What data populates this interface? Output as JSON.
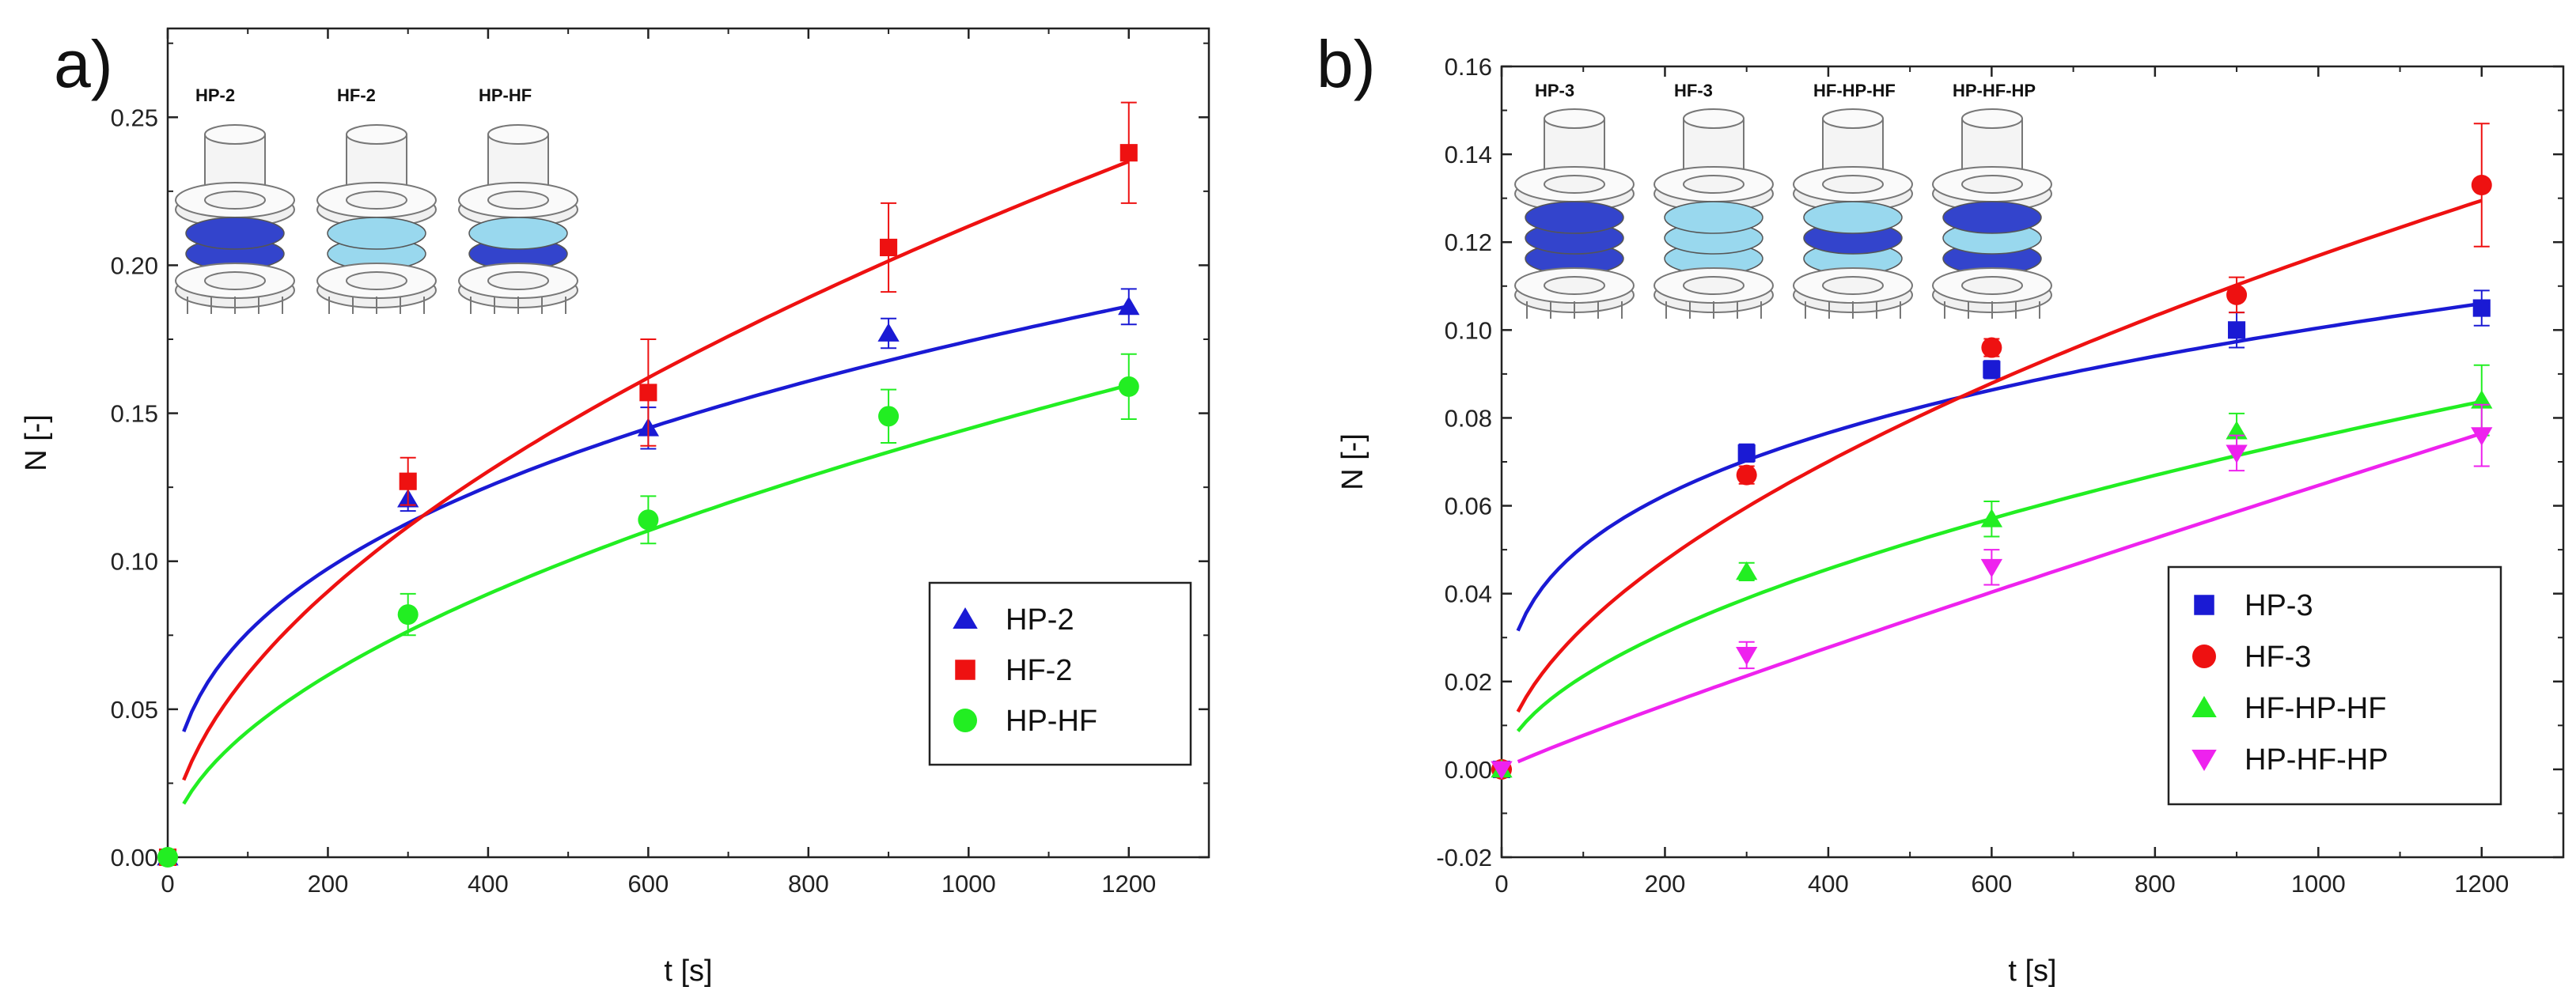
{
  "colors": {
    "blue": "#1a1ad4",
    "red": "#ee1111",
    "green": "#22ee22",
    "magenta": "#ee22ee",
    "pad_dark": "#3344cc",
    "pad_light": "#99d8ee"
  },
  "chart_data": [
    {
      "type": "scatter",
      "panel_label": "a)",
      "title": "",
      "xlabel": "t [s]",
      "ylabel": "N [-]",
      "xlim": [
        0,
        1300
      ],
      "ylim": [
        0,
        0.28
      ],
      "xticks": [
        0,
        200,
        400,
        600,
        800,
        1000,
        1200
      ],
      "xtick_labels": [
        "0",
        "200",
        "400",
        "600",
        "800",
        "1000",
        "1200"
      ],
      "yticks": [
        0,
        0.05,
        0.1,
        0.15,
        0.2,
        0.25
      ],
      "ytick_labels": [
        "0.00",
        "0.05",
        "0.10",
        "0.15",
        "0.20",
        "0.25"
      ],
      "legend_position": "center-right",
      "inset_labels": [
        "HP-2",
        "HF-2",
        "HP-HF"
      ],
      "series": [
        {
          "name": "HP-2",
          "color": "#1a1ad4",
          "marker": "triangle-up",
          "x": [
            0,
            300,
            600,
            900,
            1200
          ],
          "y": [
            0,
            0.121,
            0.145,
            0.177,
            0.186
          ],
          "err": [
            0,
            0.004,
            0.007,
            0.005,
            0.006
          ],
          "fit_a": 0.0144,
          "fit_b": 0.361
        },
        {
          "name": "HF-2",
          "color": "#ee1111",
          "marker": "square",
          "x": [
            0,
            300,
            600,
            900,
            1200
          ],
          "y": [
            0,
            0.127,
            0.157,
            0.206,
            0.238
          ],
          "err": [
            0,
            0.008,
            0.018,
            0.015,
            0.017
          ],
          "fit_a": 0.00522,
          "fit_b": 0.537
        },
        {
          "name": "HP-HF",
          "color": "#22ee22",
          "marker": "circle",
          "x": [
            0,
            300,
            600,
            900,
            1200
          ],
          "y": [
            0,
            0.082,
            0.114,
            0.149,
            0.159
          ],
          "err": [
            0,
            0.007,
            0.008,
            0.009,
            0.011
          ],
          "fit_a": 0.00367,
          "fit_b": 0.532
        }
      ]
    },
    {
      "type": "scatter",
      "panel_label": "b)",
      "title": "",
      "xlabel": "t [s]",
      "ylabel": "N [-]",
      "xlim": [
        0,
        1300
      ],
      "ylim": [
        -0.02,
        0.16
      ],
      "xticks": [
        0,
        200,
        400,
        600,
        800,
        1000,
        1200
      ],
      "xtick_labels": [
        "0",
        "200",
        "400",
        "600",
        "800",
        "1000",
        "1200"
      ],
      "yticks": [
        -0.02,
        0,
        0.02,
        0.04,
        0.06,
        0.08,
        0.1,
        0.12,
        0.14,
        0.16
      ],
      "ytick_labels": [
        "-0.02",
        "0.00",
        "0.02",
        "0.04",
        "0.06",
        "0.08",
        "0.10",
        "0.12",
        "0.14",
        "0.16"
      ],
      "legend_position": "bottom-right",
      "inset_labels": [
        "HP-3",
        "HF-3",
        "HF-HP-HF",
        "HP-HF-HP"
      ],
      "series": [
        {
          "name": "HP-3",
          "color": "#1a1ad4",
          "marker": "square",
          "x": [
            0,
            300,
            600,
            900,
            1200
          ],
          "y": [
            0,
            0.072,
            0.091,
            0.1,
            0.105
          ],
          "err": [
            0,
            0.002,
            0.002,
            0.004,
            0.004
          ],
          "fit_a": 0.013,
          "fit_b": 0.296
        },
        {
          "name": "HF-3",
          "color": "#ee1111",
          "marker": "circle",
          "x": [
            0,
            300,
            600,
            900,
            1200
          ],
          "y": [
            0,
            0.067,
            0.096,
            0.108,
            0.133
          ],
          "err": [
            0,
            0.002,
            0.002,
            0.004,
            0.014
          ],
          "fit_a": 0.00246,
          "fit_b": 0.559
        },
        {
          "name": "HF-HP-HF",
          "color": "#22ee22",
          "marker": "triangle-up",
          "x": [
            0,
            300,
            600,
            900,
            1200
          ],
          "y": [
            0,
            0.045,
            0.057,
            0.077,
            0.084
          ],
          "err": [
            0,
            0.002,
            0.004,
            0.004,
            0.008
          ],
          "fit_a": 0.00166,
          "fit_b": 0.553
        },
        {
          "name": "HP-HF-HP",
          "color": "#ee22ee",
          "marker": "triangle-down",
          "x": [
            0,
            300,
            600,
            900,
            1200
          ],
          "y": [
            0,
            0.026,
            0.046,
            0.072,
            0.076
          ],
          "err": [
            0,
            0.003,
            0.004,
            0.004,
            0.007
          ],
          "fit_a": 0.00011,
          "fit_b": 0.923
        }
      ]
    }
  ]
}
